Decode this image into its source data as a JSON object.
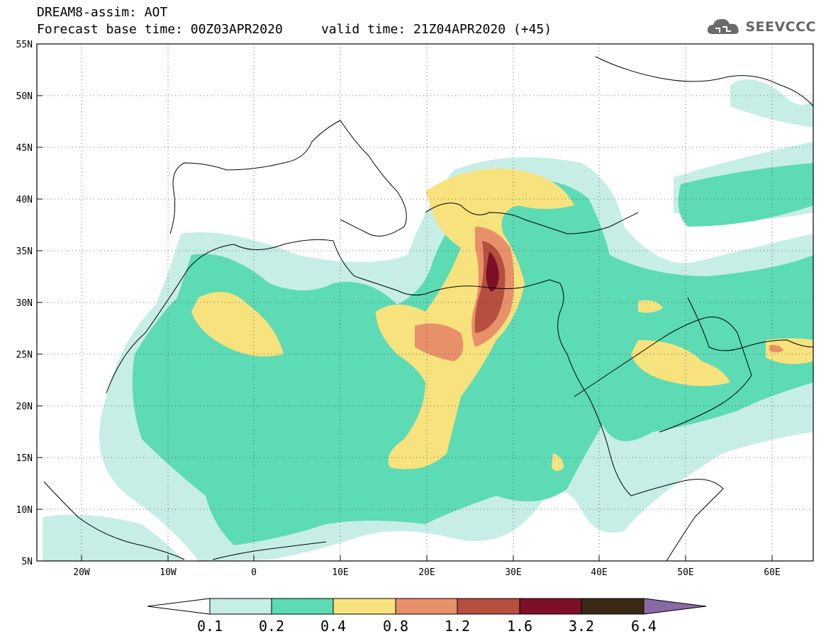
{
  "header": {
    "title_line1": "DREAM8-assim: AOT",
    "title_line2": "Forecast base time: 00Z03APR2020     valid time: 21Z04APR2020 (+45)"
  },
  "logo": {
    "text": "SEEVCCC",
    "icon": "cloud-icon"
  },
  "map": {
    "lat_labels": [
      "55N",
      "50N",
      "45N",
      "40N",
      "35N",
      "30N",
      "25N",
      "20N",
      "15N",
      "10N",
      "5N"
    ],
    "lon_labels": [
      "20W",
      "10W",
      "0",
      "10E",
      "20E",
      "30E",
      "40E",
      "50E",
      "60E"
    ]
  },
  "colorbar": {
    "labels": [
      "0.1",
      "0.2",
      "0.4",
      "0.8",
      "1.2",
      "1.6",
      "3.2",
      "6.4"
    ],
    "colors": [
      "#ffffff",
      "#c6eee6",
      "#5cdbb4",
      "#f7e27e",
      "#e8906a",
      "#b5503f",
      "#7d0f26",
      "#3b2918",
      "#8a6aa6"
    ]
  }
}
